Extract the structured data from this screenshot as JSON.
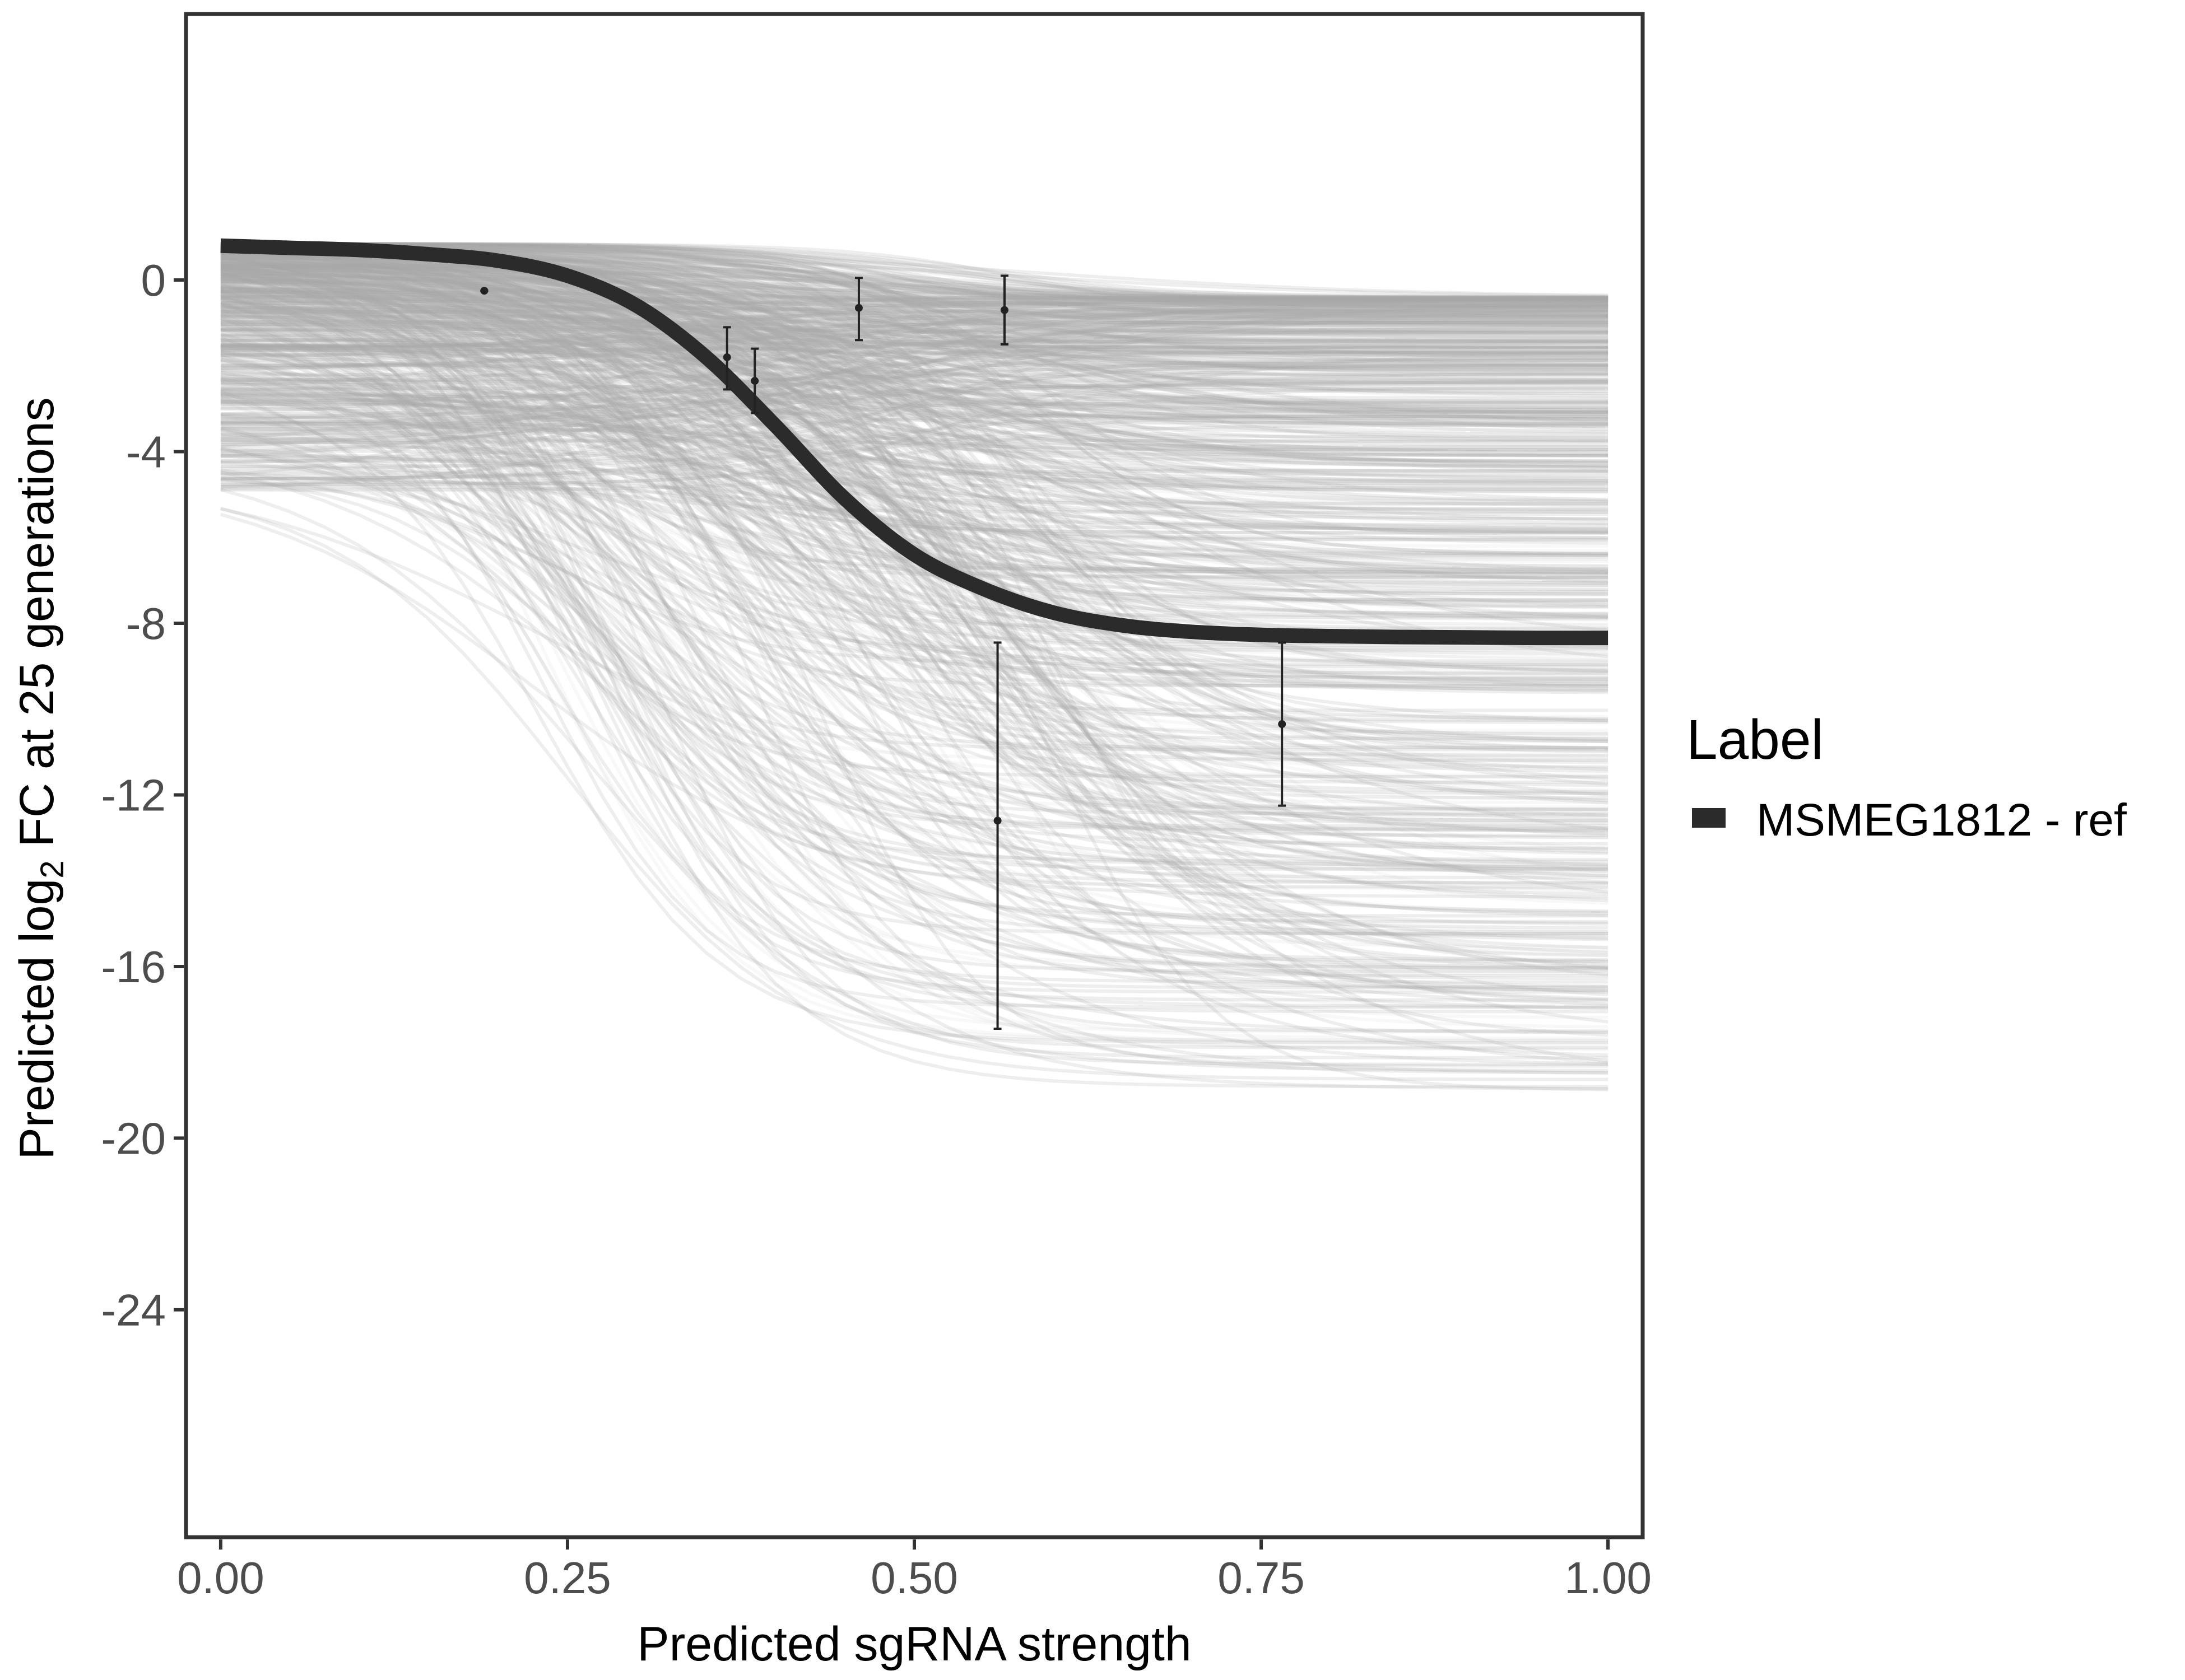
{
  "chart_data": {
    "type": "line",
    "xlabel": "Predicted sgRNA strength",
    "ylabel": {
      "prefix": "Predicted  log",
      "subscript": "2",
      "suffix": " FC at 25 generations"
    },
    "xlim": [
      -0.025,
      1.025
    ],
    "ylim": [
      -29.3,
      6.2
    ],
    "x_ticks": [
      {
        "value": 0.0,
        "label": "0.00"
      },
      {
        "value": 0.25,
        "label": "0.25"
      },
      {
        "value": 0.5,
        "label": "0.50"
      },
      {
        "value": 0.75,
        "label": "0.75"
      },
      {
        "value": 1.0,
        "label": "1.00"
      }
    ],
    "y_ticks": [
      {
        "value": 0,
        "label": "0"
      },
      {
        "value": -4,
        "label": "-4"
      },
      {
        "value": -8,
        "label": "-8"
      },
      {
        "value": -12,
        "label": "-12"
      },
      {
        "value": -16,
        "label": "-16"
      },
      {
        "value": -20,
        "label": "-20"
      },
      {
        "value": -24,
        "label": "-24"
      }
    ],
    "grid": false,
    "legend": {
      "title": "Label",
      "placement": "right",
      "entries": [
        {
          "label": "MSMEG1812 - ref",
          "color": "#2b2b2b"
        }
      ]
    },
    "fitted_curve": {
      "name": "MSMEG1812 - ref",
      "color": "#2b2b2b",
      "x": [
        0.0,
        0.05,
        0.1,
        0.15,
        0.2,
        0.25,
        0.3,
        0.35,
        0.4,
        0.45,
        0.5,
        0.55,
        0.6,
        0.65,
        0.7,
        0.75,
        0.8,
        0.85,
        0.9,
        0.95,
        1.0
      ],
      "y": [
        0.8,
        0.75,
        0.7,
        0.6,
        0.45,
        0.1,
        -0.6,
        -1.8,
        -3.4,
        -5.1,
        -6.4,
        -7.2,
        -7.75,
        -8.05,
        -8.2,
        -8.27,
        -8.3,
        -8.32,
        -8.33,
        -8.34,
        -8.34
      ]
    },
    "posterior_draws": {
      "color": "#a9a9a9",
      "count": 700,
      "description_values": {
        "y_at_x0_range": [
          -5.0,
          0.85
        ],
        "y_at_x1_range": [
          -18.9,
          -0.4
        ],
        "midpoint_x_range": [
          0.2,
          0.6
        ]
      }
    },
    "observations": [
      {
        "x": 0.19,
        "y": -0.25,
        "lower": -0.25,
        "upper": -0.25
      },
      {
        "x": 0.365,
        "y": -1.8,
        "lower": -2.55,
        "upper": -1.1
      },
      {
        "x": 0.385,
        "y": -2.35,
        "lower": -3.1,
        "upper": -1.6
      },
      {
        "x": 0.46,
        "y": -0.65,
        "lower": -1.4,
        "upper": 0.05
      },
      {
        "x": 0.565,
        "y": -0.7,
        "lower": -1.5,
        "upper": 0.1
      },
      {
        "x": 0.56,
        "y": -12.6,
        "lower": -17.45,
        "upper": -8.45
      },
      {
        "x": 0.765,
        "y": -10.35,
        "lower": -12.25,
        "upper": -8.45
      }
    ]
  }
}
